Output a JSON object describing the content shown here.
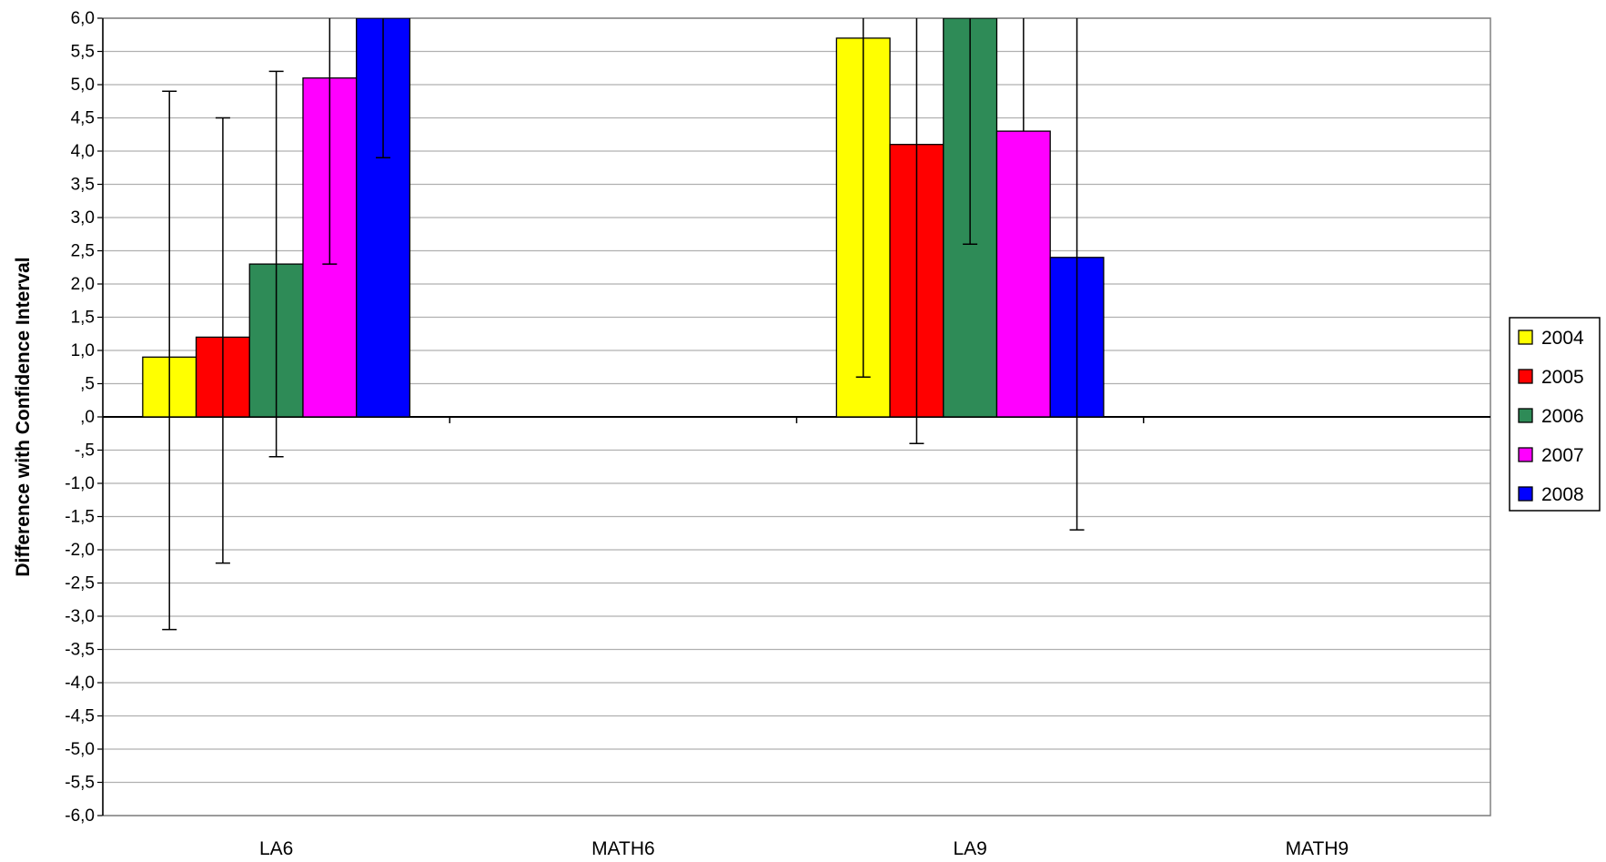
{
  "chart_data": {
    "type": "bar",
    "title": "",
    "xlabel": "",
    "ylabel": "Difference with Confidence Interval",
    "ylim": [
      -6.0,
      6.0
    ],
    "ytick_step": 0.5,
    "yticks": [
      "6,0",
      "5,5",
      "5,0",
      "4,5",
      "4,0",
      "3,5",
      "3,0",
      "2,5",
      "2,0",
      "1,5",
      "1,0",
      ",5",
      ",0",
      "-,5",
      "-1,0",
      "-1,5",
      "-2,0",
      "-2,5",
      "-3,0",
      "-3,5",
      "-4,0",
      "-4,5",
      "-5,0",
      "-5,5",
      "-6,0"
    ],
    "categories": [
      "LA6",
      "MATH6",
      "LA9",
      "MATH9"
    ],
    "grid": true,
    "legend_position": "right",
    "series": [
      {
        "name": "2004",
        "color": "#ffff00",
        "values": [
          0.9,
          null,
          5.7,
          null
        ],
        "ci_low": [
          -3.2,
          null,
          0.6,
          null
        ],
        "ci_high": [
          4.9,
          null,
          6.0,
          null
        ]
      },
      {
        "name": "2005",
        "color": "#ff0000",
        "values": [
          1.2,
          null,
          4.1,
          null
        ],
        "ci_low": [
          -2.2,
          null,
          -0.4,
          null
        ],
        "ci_high": [
          4.5,
          null,
          6.0,
          null
        ]
      },
      {
        "name": "2006",
        "color": "#2e8b57",
        "values": [
          2.3,
          null,
          6.0,
          null
        ],
        "ci_low": [
          -0.6,
          null,
          2.6,
          null
        ],
        "ci_high": [
          5.2,
          null,
          6.0,
          null
        ]
      },
      {
        "name": "2007",
        "color": "#ff00ff",
        "values": [
          5.1,
          null,
          4.3,
          null
        ],
        "ci_low": [
          2.3,
          null,
          null,
          null
        ],
        "ci_high": [
          6.0,
          null,
          6.0,
          null
        ]
      },
      {
        "name": "2008",
        "color": "#0000ff",
        "values": [
          6.0,
          null,
          2.4,
          null
        ],
        "ci_low": [
          3.9,
          null,
          -1.7,
          null
        ],
        "ci_high": [
          6.0,
          null,
          6.0,
          null
        ]
      }
    ]
  }
}
